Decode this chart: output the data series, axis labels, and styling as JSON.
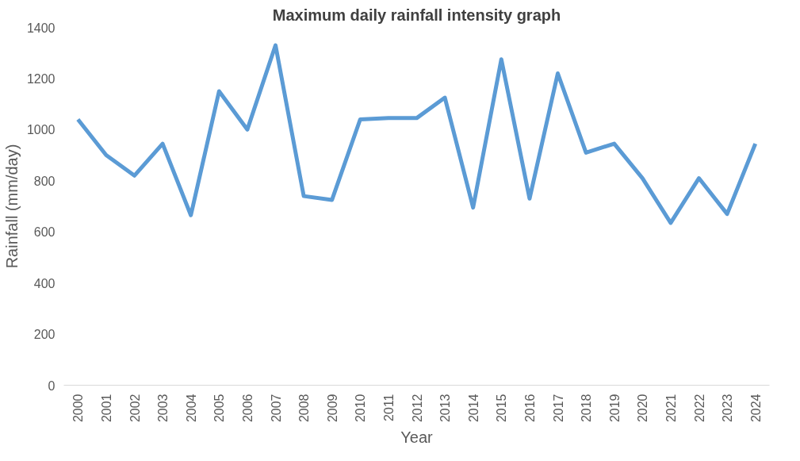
{
  "chart_data": {
    "type": "line",
    "title": "Maximum daily rainfall intensity graph",
    "xlabel": "Year",
    "ylabel": "Rainfall (mm/day)",
    "categories": [
      "2000",
      "2001",
      "2002",
      "2003",
      "2004",
      "2005",
      "2006",
      "2007",
      "2008",
      "2009",
      "2010",
      "2011",
      "2012",
      "2013",
      "2014",
      "2015",
      "2016",
      "2017",
      "2018",
      "2019",
      "2020",
      "2021",
      "2022",
      "2023",
      "2024"
    ],
    "series": [
      {
        "color": "#5b9bd5",
        "values": [
          1040,
          900,
          820,
          945,
          665,
          1150,
          1000,
          1330,
          740,
          725,
          1040,
          1045,
          1045,
          1125,
          695,
          1275,
          730,
          1220,
          910,
          945,
          810,
          635,
          810,
          670,
          945
        ]
      }
    ],
    "ylim": [
      0,
      1400
    ],
    "yticks": [
      0,
      200,
      400,
      600,
      800,
      1000,
      1200,
      1400
    ],
    "grid": false,
    "marker": "none",
    "line_style": "solid"
  }
}
